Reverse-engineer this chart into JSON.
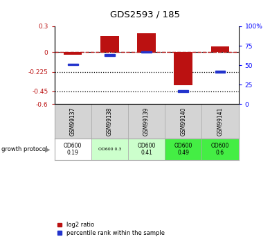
{
  "title": "GDS2593 / 185",
  "samples": [
    "GSM99137",
    "GSM99138",
    "GSM99139",
    "GSM99140",
    "GSM99141"
  ],
  "log2_ratio": [
    -0.03,
    0.19,
    0.22,
    -0.38,
    0.07
  ],
  "percentile_rank": [
    51,
    63,
    67,
    17,
    42
  ],
  "ylim_left": [
    -0.6,
    0.3
  ],
  "ylim_right": [
    0,
    100
  ],
  "yticks_left": [
    0.3,
    0.0,
    -0.225,
    -0.45,
    -0.6
  ],
  "ytick_labels_left": [
    "0.3",
    "0",
    "-0.225",
    "-0.45",
    "-0.6"
  ],
  "yticks_right": [
    100,
    75,
    50,
    25,
    0
  ],
  "ytick_labels_right": [
    "100%",
    "75",
    "50",
    "25",
    "0"
  ],
  "hlines": [
    -0.225,
    -0.45
  ],
  "bar_color": "#bb1111",
  "dot_color": "#2233cc",
  "bg_color": "#ffffff",
  "plot_bg": "#ffffff",
  "growth_protocol_values": [
    "OD600\n0.19",
    "OD600 0.3",
    "OD600\n0.41",
    "OD600\n0.49",
    "OD600\n0.6"
  ],
  "growth_bg_colors": [
    "#ffffff",
    "#ccffcc",
    "#ccffcc",
    "#44ee44",
    "#44ee44"
  ],
  "legend_labels": [
    "log2 ratio",
    "percentile rank within the sample"
  ],
  "bar_width": 0.5,
  "sample_bg": "#d4d4d4",
  "sample_edge": "#aaaaaa"
}
